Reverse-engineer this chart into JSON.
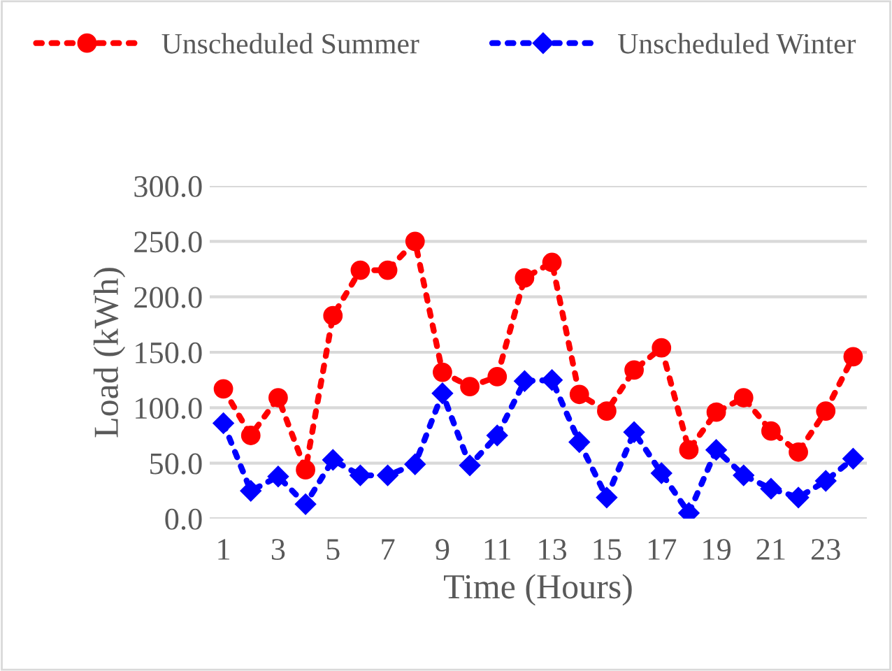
{
  "chart_data": {
    "type": "line",
    "xlabel": "Time (Hours)",
    "ylabel": "Load (kWh)",
    "categories": [
      "1",
      null,
      "3",
      null,
      "5",
      null,
      "7",
      null,
      "9",
      null,
      "11",
      null,
      "13",
      null,
      "15",
      null,
      "17",
      null,
      "19",
      null,
      "21",
      null,
      "23",
      null
    ],
    "series": [
      {
        "name": "Unscheduled Summer",
        "color": "#ff0000",
        "marker": "circle",
        "values": [
          117,
          75,
          109,
          44,
          183,
          224,
          224,
          250,
          132,
          119,
          128,
          217,
          231,
          112,
          97,
          134,
          154,
          62,
          96,
          109,
          79,
          60,
          97,
          146
        ]
      },
      {
        "name": "Unscheduled Winter",
        "color": "#0000ff",
        "marker": "diamond",
        "values": [
          86,
          25,
          38,
          13,
          53,
          39,
          39,
          49,
          113,
          48,
          75,
          124,
          125,
          69,
          19,
          78,
          41,
          5,
          62,
          39,
          27,
          19,
          34,
          54
        ]
      }
    ],
    "ylim": [
      0,
      300
    ],
    "yticks": [
      {
        "value": 0,
        "label": "0.0"
      },
      {
        "value": 50,
        "label": "50.0"
      },
      {
        "value": 100,
        "label": "100.0"
      },
      {
        "value": 150,
        "label": "150.0"
      },
      {
        "value": 200,
        "label": "200.0"
      },
      {
        "value": 250,
        "label": "250.0"
      },
      {
        "value": 300,
        "label": "300.0"
      }
    ],
    "grid": "y",
    "legend": "top",
    "line_style": "dotted"
  }
}
